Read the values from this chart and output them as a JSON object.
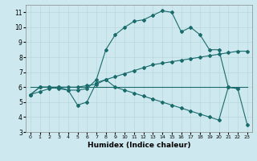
{
  "xlabel": "Humidex (Indice chaleur)",
  "xlim": [
    -0.5,
    23.5
  ],
  "ylim": [
    3,
    11.5
  ],
  "xticks": [
    0,
    1,
    2,
    3,
    4,
    5,
    6,
    7,
    8,
    9,
    10,
    11,
    12,
    13,
    14,
    15,
    16,
    17,
    18,
    19,
    20,
    21,
    22,
    23
  ],
  "yticks": [
    3,
    4,
    5,
    6,
    7,
    8,
    9,
    10,
    11
  ],
  "bg_color": "#cde8ee",
  "line_color": "#1a6b6b",
  "grid_color": "#b8d8de",
  "lines": [
    {
      "x": [
        0,
        1,
        2,
        3,
        4,
        5,
        6,
        7,
        8,
        9,
        10,
        11,
        12,
        13,
        14,
        15,
        16,
        17,
        18,
        19,
        20,
        21,
        22,
        23
      ],
      "y": [
        5.5,
        6.0,
        6.0,
        6.0,
        5.8,
        5.8,
        5.9,
        6.5,
        8.5,
        9.5,
        10.0,
        10.4,
        10.5,
        10.8,
        11.1,
        11.0,
        9.7,
        10.0,
        9.5,
        8.5,
        8.5,
        6.0,
        5.9,
        null
      ]
    },
    {
      "x": [
        0,
        1,
        2,
        3,
        4,
        5,
        6,
        7,
        8,
        9,
        10,
        11,
        12,
        13,
        14,
        15,
        16,
        17,
        18,
        19,
        20,
        21,
        22,
        23
      ],
      "y": [
        5.5,
        5.7,
        5.9,
        6.0,
        6.0,
        6.0,
        6.1,
        6.2,
        6.5,
        6.7,
        6.9,
        7.1,
        7.3,
        7.5,
        7.6,
        7.7,
        7.8,
        7.9,
        8.0,
        8.1,
        8.2,
        8.3,
        8.4,
        8.4
      ]
    },
    {
      "x": [
        0,
        23
      ],
      "y": [
        6.0,
        6.0
      ]
    },
    {
      "x": [
        0,
        1,
        2,
        3,
        4,
        5,
        6,
        7,
        8,
        9,
        10,
        11,
        12,
        13,
        14,
        15,
        16,
        17,
        18,
        19,
        20,
        21,
        22,
        23
      ],
      "y": [
        5.5,
        6.0,
        6.0,
        5.9,
        5.8,
        4.8,
        5.0,
        6.3,
        6.5,
        6.0,
        5.8,
        5.6,
        5.4,
        5.2,
        5.0,
        4.8,
        4.6,
        4.4,
        4.2,
        4.0,
        3.8,
        6.0,
        5.9,
        3.5
      ]
    }
  ]
}
